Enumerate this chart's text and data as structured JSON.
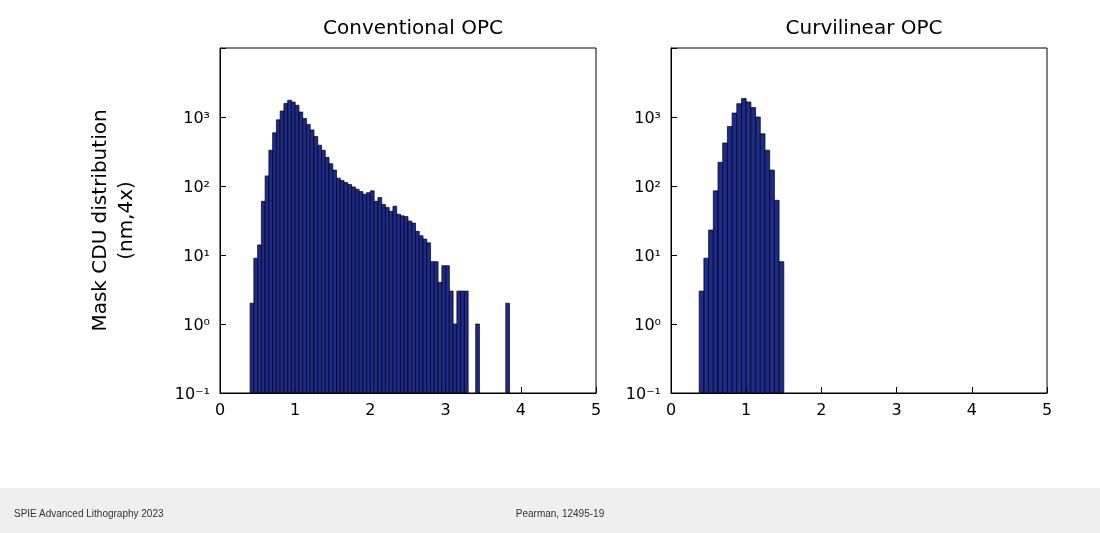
{
  "chart_data": [
    {
      "type": "histogram",
      "title": "Conventional OPC",
      "ylabel": "Mask CDU distribution\n(nm,4x)",
      "log": "y",
      "grid": false,
      "color": "#1c2a8c",
      "bins": [
        0.4,
        0.45,
        0.5,
        0.55,
        0.6,
        0.65,
        0.7,
        0.75,
        0.8,
        0.85,
        0.9,
        0.95,
        1.0,
        1.05,
        1.1,
        1.15,
        1.2,
        1.25,
        1.3,
        1.35,
        1.4,
        1.45,
        1.5,
        1.55,
        1.6,
        1.65,
        1.7,
        1.75,
        1.8,
        1.85,
        1.9,
        1.95,
        2.0,
        2.05,
        2.1,
        2.15,
        2.2,
        2.25,
        2.3,
        2.35,
        2.4,
        2.45,
        2.5,
        2.55,
        2.6,
        2.65,
        2.7,
        2.75,
        2.8,
        2.85,
        2.9,
        2.95,
        3.0,
        3.05,
        3.1,
        3.15,
        3.2,
        3.25,
        3.3,
        3.35,
        3.4,
        3.45,
        3.5,
        3.55,
        3.6,
        3.65,
        3.7,
        3.75,
        3.8,
        3.85
      ],
      "values": [
        2,
        9,
        14,
        60,
        140,
        330,
        590,
        910,
        1220,
        1570,
        1750,
        1650,
        1480,
        1180,
        950,
        780,
        650,
        520,
        390,
        330,
        260,
        210,
        170,
        130,
        120,
        112,
        105,
        97,
        90,
        83,
        76,
        80,
        85,
        60,
        68,
        54,
        49,
        43,
        51,
        39,
        37,
        36,
        31,
        29,
        22,
        19,
        17,
        15,
        8,
        8,
        4,
        7,
        7,
        3,
        1,
        3,
        3,
        3,
        null,
        null,
        1,
        null,
        null,
        null,
        null,
        null,
        null,
        null,
        2
      ],
      "xlim": [
        0,
        5
      ],
      "xticks": [
        0,
        1,
        2,
        3,
        4,
        5
      ],
      "ylim": [
        0.1,
        10000
      ],
      "yticks": [
        {
          "value": 0.1,
          "label": "10⁻¹"
        },
        {
          "value": 1,
          "label": "10⁰"
        },
        {
          "value": 10,
          "label": "10¹"
        },
        {
          "value": 100,
          "label": "10²"
        },
        {
          "value": 1000,
          "label": "10³"
        },
        {
          "value": 10000,
          "label": null
        }
      ],
      "annotations": [
        "SPIE Advanced Lithography 2023",
        "Pearman, 12495-19"
      ]
    },
    {
      "type": "histogram",
      "title": "Curvilinear OPC",
      "log": "y",
      "grid": false,
      "color": "#1c2a8c",
      "bins": [
        0.375,
        0.4375,
        0.5,
        0.5625,
        0.625,
        0.6875,
        0.75,
        0.8125,
        0.875,
        0.9375,
        1.0,
        1.0625,
        1.125,
        1.1875,
        1.25,
        1.3125,
        1.375,
        1.4375,
        1.5
      ],
      "values": [
        3,
        9,
        23,
        85,
        220,
        420,
        730,
        1140,
        1560,
        1850,
        1650,
        1370,
        1000,
        570,
        330,
        170,
        62,
        8
      ],
      "xlim": [
        0,
        5
      ],
      "xticks": [
        0,
        1,
        2,
        3,
        4,
        5
      ],
      "ylim": [
        0.1,
        10000
      ],
      "yticks": [
        {
          "value": 0.1,
          "label": "10⁻¹"
        },
        {
          "value": 1,
          "label": "10⁰"
        },
        {
          "value": 10,
          "label": "10¹"
        },
        {
          "value": 100,
          "label": "10²"
        },
        {
          "value": 1000,
          "label": "10³"
        },
        {
          "value": 10000,
          "label": null
        }
      ]
    }
  ]
}
